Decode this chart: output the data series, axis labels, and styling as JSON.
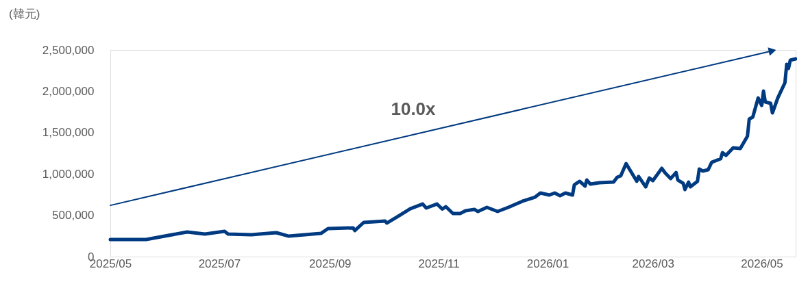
{
  "chart_data": {
    "type": "line",
    "ylabel": "(韓元)",
    "annotations": [
      "10.0x"
    ],
    "xlim": [
      "2025-05-01",
      "2026-05-20"
    ],
    "xticks": [
      {
        "value": "2025-05-01",
        "label": "2025/05"
      },
      {
        "value": "2025-07-01",
        "label": "2025/07"
      },
      {
        "value": "2025-09-01",
        "label": "2025/09"
      },
      {
        "value": "2025-11-01",
        "label": "2025/11"
      },
      {
        "value": "2026-01-01",
        "label": "2026/01"
      },
      {
        "value": "2026-03-01",
        "label": "2026/03"
      },
      {
        "value": "2026-05-01",
        "label": "2026/05"
      }
    ],
    "ylim": [
      0,
      2500000
    ],
    "yticks": [
      0,
      {
        "value": 500000,
        "label": "500,000"
      },
      {
        "value": 1000000,
        "label": "1,000,000"
      },
      {
        "value": 1500000,
        "label": "1,500,000"
      },
      {
        "value": 2000000,
        "label": "2,000,000"
      },
      {
        "value": 2500000,
        "label": "2,500,000"
      }
    ],
    "grid": false,
    "marker": "none",
    "line_style": "solid",
    "series": [
      {
        "color": "#003a80",
        "x": [
          "2025-05-01",
          "2025-05-21",
          "2025-06-13",
          "2025-06-23",
          "2025-07-04",
          "2025-07-06",
          "2025-07-19",
          "2025-08-02",
          "2025-08-09",
          "2025-08-27",
          "2025-08-31",
          "2025-09-14",
          "2025-09-15",
          "2025-09-20",
          "2025-10-02",
          "2025-10-03",
          "2025-10-10",
          "2025-10-16",
          "2025-10-23",
          "2025-10-25",
          "2025-10-31",
          "2025-11-03",
          "2025-11-05",
          "2025-11-09",
          "2025-11-13",
          "2025-11-16",
          "2025-11-21",
          "2025-11-23",
          "2025-11-28",
          "2025-12-04",
          "2025-12-10",
          "2025-12-18",
          "2025-12-25",
          "2025-12-28",
          "2026-01-02",
          "2026-01-05",
          "2026-01-08",
          "2026-01-11",
          "2026-01-15",
          "2026-01-16",
          "2026-01-19",
          "2026-01-22",
          "2026-01-23",
          "2026-01-25",
          "2026-01-30",
          "2026-02-07",
          "2026-02-09",
          "2026-02-11",
          "2026-02-14",
          "2026-02-20",
          "2026-02-21",
          "2026-02-25",
          "2026-02-27",
          "2026-03-01",
          "2026-03-06",
          "2026-03-08",
          "2026-03-11",
          "2026-03-14",
          "2026-03-15",
          "2026-03-18",
          "2026-03-19",
          "2026-03-21",
          "2026-03-22",
          "2026-03-26",
          "2026-03-27",
          "2026-03-29",
          "2026-04-01",
          "2026-04-03",
          "2026-04-08",
          "2026-04-09",
          "2026-04-11",
          "2026-04-15",
          "2026-04-19",
          "2026-04-23",
          "2026-04-24",
          "2026-04-26",
          "2026-04-29",
          "2026-05-01",
          "2026-05-02",
          "2026-05-03",
          "2026-05-06",
          "2026-05-07",
          "2026-05-10",
          "2026-05-14",
          "2026-05-15",
          "2026-05-16",
          "2026-05-17",
          "2026-05-20"
        ],
        "values": [
          207000,
          207000,
          298000,
          273000,
          306000,
          273000,
          265000,
          290000,
          248000,
          281000,
          339000,
          348000,
          315000,
          414000,
          430000,
          406000,
          497000,
          579000,
          637000,
          588000,
          637000,
          575000,
          604000,
          521000,
          521000,
          555000,
          571000,
          546000,
          596000,
          546000,
          596000,
          671000,
          720000,
          770000,
          745000,
          770000,
          737000,
          770000,
          745000,
          869000,
          911000,
          853000,
          927000,
          877000,
          894000,
          902000,
          960000,
          977000,
          1126000,
          911000,
          969000,
          844000,
          952000,
          919000,
          1068000,
          1010000,
          944000,
          1018000,
          927000,
          886000,
          811000,
          902000,
          844000,
          911000,
          1060000,
          1035000,
          1051000,
          1142000,
          1184000,
          1258000,
          1225000,
          1316000,
          1308000,
          1457000,
          1664000,
          1689000,
          1920000,
          1829000,
          2003000,
          1871000,
          1854000,
          1738000,
          1920000,
          2103000,
          2326000,
          2276000,
          2376000,
          2392000
        ]
      },
      {
        "type": "line",
        "marker": "triangle",
        "color": "#003a80",
        "x": [
          "2025-05-01",
          "2026-05-07"
        ],
        "values": [
          620000,
          2490000
        ]
      }
    ]
  }
}
